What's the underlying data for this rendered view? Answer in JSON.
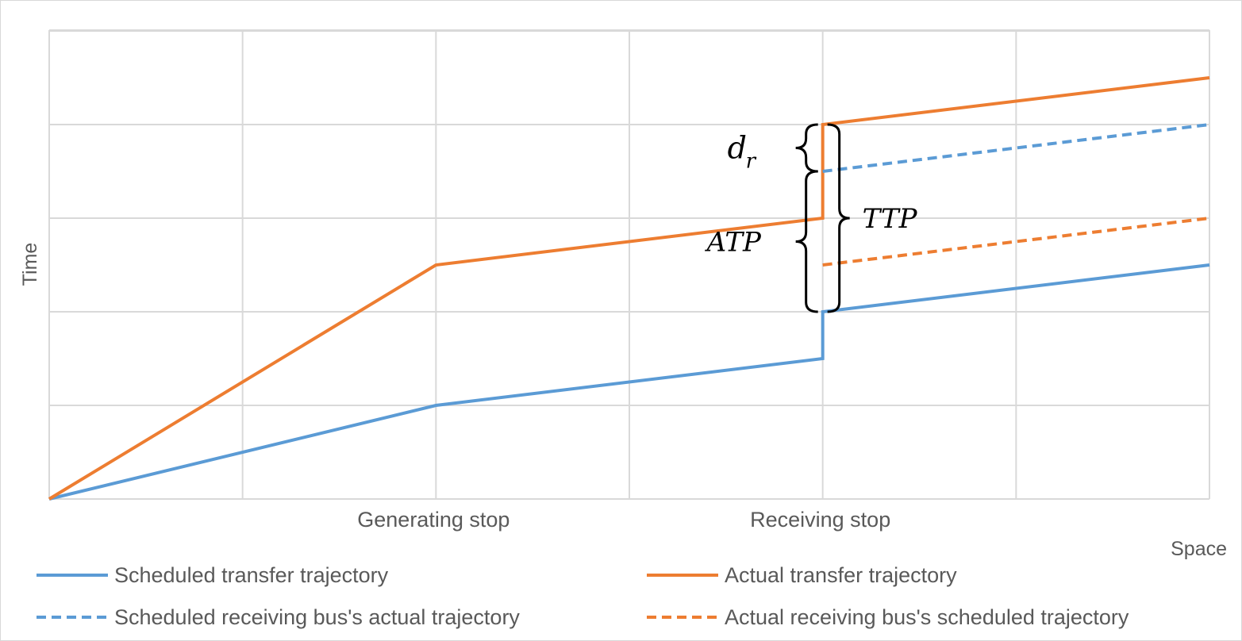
{
  "chart_data": {
    "type": "line",
    "title": "",
    "xlabel": "Space",
    "ylabel": "Time",
    "x_categories": [
      "Generating stop",
      "Receiving stop"
    ],
    "x_category_positions": [
      2,
      4
    ],
    "xlim": [
      0,
      6
    ],
    "ylim": [
      0,
      8
    ],
    "grid": true,
    "legend_position": "bottom",
    "series": [
      {
        "name": "Scheduled transfer trajectory",
        "color": "#5B9BD5",
        "dash": false,
        "points": [
          [
            0,
            0
          ],
          [
            2,
            2
          ],
          [
            4,
            3
          ],
          [
            4,
            4
          ],
          [
            6,
            5
          ]
        ]
      },
      {
        "name": "Actual transfer trajectory",
        "color": "#ED7D31",
        "dash": false,
        "points": [
          [
            0,
            0
          ],
          [
            2,
            5
          ],
          [
            4,
            6
          ],
          [
            4,
            8
          ],
          [
            6,
            9
          ]
        ]
      },
      {
        "name": "Scheduled receiving bus's actual trajectory",
        "color": "#5B9BD5",
        "dash": true,
        "points": [
          [
            4,
            7
          ],
          [
            6,
            8
          ]
        ]
      },
      {
        "name": "Actual receiving bus's scheduled trajectory",
        "color": "#ED7D31",
        "dash": true,
        "points": [
          [
            4,
            5
          ],
          [
            6,
            6
          ]
        ]
      }
    ],
    "annotations": [
      {
        "text": "d",
        "sub": "r",
        "y_range": [
          7,
          8
        ]
      },
      {
        "text": "ATP",
        "y_range": [
          4,
          8
        ]
      },
      {
        "text": "TTP",
        "y_range": [
          4,
          8
        ]
      }
    ]
  }
}
